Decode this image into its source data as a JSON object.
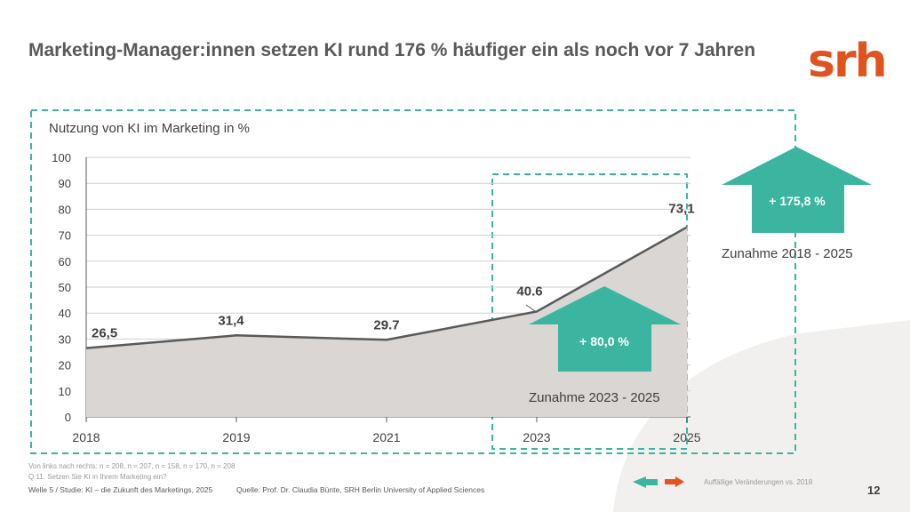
{
  "title": "Marketing-Manager:innen setzen KI rund 176 % häufiger ein als noch vor 7 Jahren",
  "logo_text": "srh",
  "chart_data": {
    "type": "area",
    "title": "Nutzung von KI im Marketing in %",
    "xlabel": "",
    "ylabel": "",
    "categories": [
      "2018",
      "2019",
      "2021",
      "2023",
      "2025"
    ],
    "values": [
      26.5,
      31.4,
      29.7,
      40.6,
      73.1
    ],
    "data_labels": [
      "26,5",
      "31,4",
      "29.7",
      "40.6",
      "73,1"
    ],
    "ylim": [
      0,
      100
    ],
    "yticks": [
      "0",
      "10",
      "20",
      "30",
      "40",
      "50",
      "60",
      "70",
      "80",
      "90",
      "100"
    ],
    "grid": true,
    "annotations": [
      {
        "label": "+ 80,0  %",
        "caption": "Zunahme 2023 - 2025"
      },
      {
        "label": "+ 175,8  %",
        "caption": "Zunahme 2018 - 2025"
      }
    ]
  },
  "colors": {
    "accent": "#3bb5a0",
    "arrow_down": "#e5531d",
    "area_fill": "#d9d6d3",
    "line": "#595959",
    "title": "#595959",
    "logo": "#e0531f",
    "bg_shape": "#f2f0ee"
  },
  "footer": {
    "sample_note": "Von links nach rechts: n = 208, n = 207, n = 158, n = 170, n = 208",
    "question": "Q 11. Setzen Sie KI in Ihrem Marketing ein?",
    "wave": "Welle 5 / Studie: KI – die Zukunft des Marketings, 2025",
    "source": "Quelle: Prof. Dr. Claudia Bünte, SRH Berlin University of Applied Sciences",
    "legend": "Auffällige Veränderungen vs. 2018",
    "page_number": "12"
  }
}
